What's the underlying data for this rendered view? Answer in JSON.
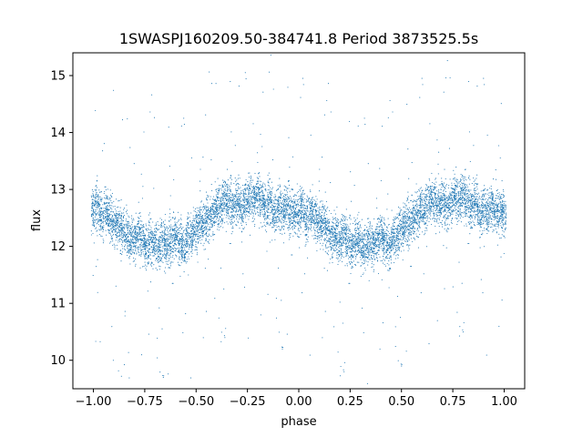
{
  "chart_data": {
    "type": "scatter",
    "title": "1SWASPJ160209.50-384741.8 Period 3873525.5s",
    "xlabel": "phase",
    "ylabel": "flux",
    "xlim": [
      -1.1,
      1.1
    ],
    "ylim": [
      9.5,
      15.4
    ],
    "x_ticks": [
      -1.0,
      -0.75,
      -0.5,
      -0.25,
      0.0,
      0.25,
      0.5,
      0.75,
      1.0
    ],
    "x_tick_labels": [
      "−1.00",
      "−0.75",
      "−0.50",
      "−0.25",
      "0.00",
      "0.25",
      "0.50",
      "0.75",
      "1.00"
    ],
    "y_ticks": [
      10,
      11,
      12,
      13,
      14,
      15
    ],
    "y_tick_labels": [
      "10",
      "11",
      "12",
      "13",
      "14",
      "15"
    ],
    "grid": false,
    "legend": "none",
    "marker_color": "#1f77b4",
    "series": [
      {
        "x": [
          -1.0,
          -0.98,
          -0.96,
          -0.94,
          -0.92,
          -0.9,
          -0.88,
          -0.86,
          -0.84,
          -0.82,
          -0.8,
          -0.78,
          -0.76,
          -0.74,
          -0.72,
          -0.7,
          -0.68,
          -0.66,
          -0.64,
          -0.62,
          -0.6,
          -0.58,
          -0.56,
          -0.54,
          -0.52,
          -0.5,
          -0.48,
          -0.46,
          -0.44,
          -0.42,
          -0.4,
          -0.38,
          -0.36,
          -0.34,
          -0.32,
          -0.3,
          -0.28,
          -0.26,
          -0.24,
          -0.22,
          -0.2,
          -0.18,
          -0.16,
          -0.14,
          -0.12,
          -0.1,
          -0.08,
          -0.06,
          -0.04,
          -0.02,
          0.0,
          0.02,
          0.04,
          0.06,
          0.08,
          0.1,
          0.12,
          0.14,
          0.16,
          0.18,
          0.2,
          0.22,
          0.24,
          0.26,
          0.28,
          0.3,
          0.32,
          0.34,
          0.36,
          0.38,
          0.4,
          0.42,
          0.44,
          0.46,
          0.48,
          0.5,
          0.52,
          0.54,
          0.56,
          0.58,
          0.6,
          0.62,
          0.64,
          0.66,
          0.68,
          0.7,
          0.72,
          0.74,
          0.76,
          0.78,
          0.8,
          0.82,
          0.84,
          0.86,
          0.88,
          0.9,
          0.92,
          0.94,
          0.96,
          0.98,
          1.0
        ],
        "y": [
          12.6,
          12.7,
          12.5,
          12.6,
          12.5,
          12.4,
          12.4,
          12.3,
          12.2,
          12.2,
          12.1,
          12.2,
          12.1,
          12.0,
          12.1,
          12.1,
          12.0,
          12.1,
          12.0,
          12.1,
          12.2,
          12.1,
          12.0,
          12.2,
          12.2,
          12.3,
          12.4,
          12.4,
          12.5,
          12.6,
          12.7,
          12.7,
          12.8,
          12.8,
          12.7,
          12.8,
          12.7,
          12.8,
          12.9,
          12.8,
          12.9,
          12.8,
          12.7,
          12.8,
          12.6,
          12.7,
          12.6,
          12.7,
          12.6,
          12.6,
          12.6,
          12.7,
          12.5,
          12.6,
          12.5,
          12.4,
          12.4,
          12.3,
          12.2,
          12.2,
          12.1,
          12.2,
          12.1,
          12.0,
          12.1,
          12.1,
          12.0,
          12.1,
          12.0,
          12.1,
          12.2,
          12.1,
          12.0,
          12.2,
          12.2,
          12.3,
          12.4,
          12.4,
          12.5,
          12.6,
          12.7,
          12.7,
          12.8,
          12.8,
          12.7,
          12.8,
          12.7,
          12.8,
          12.9,
          12.8,
          12.9,
          12.8,
          12.7,
          12.8,
          12.6,
          12.7,
          12.6,
          12.7,
          12.6,
          12.6,
          12.6
        ],
        "spread": 0.45
      }
    ]
  }
}
